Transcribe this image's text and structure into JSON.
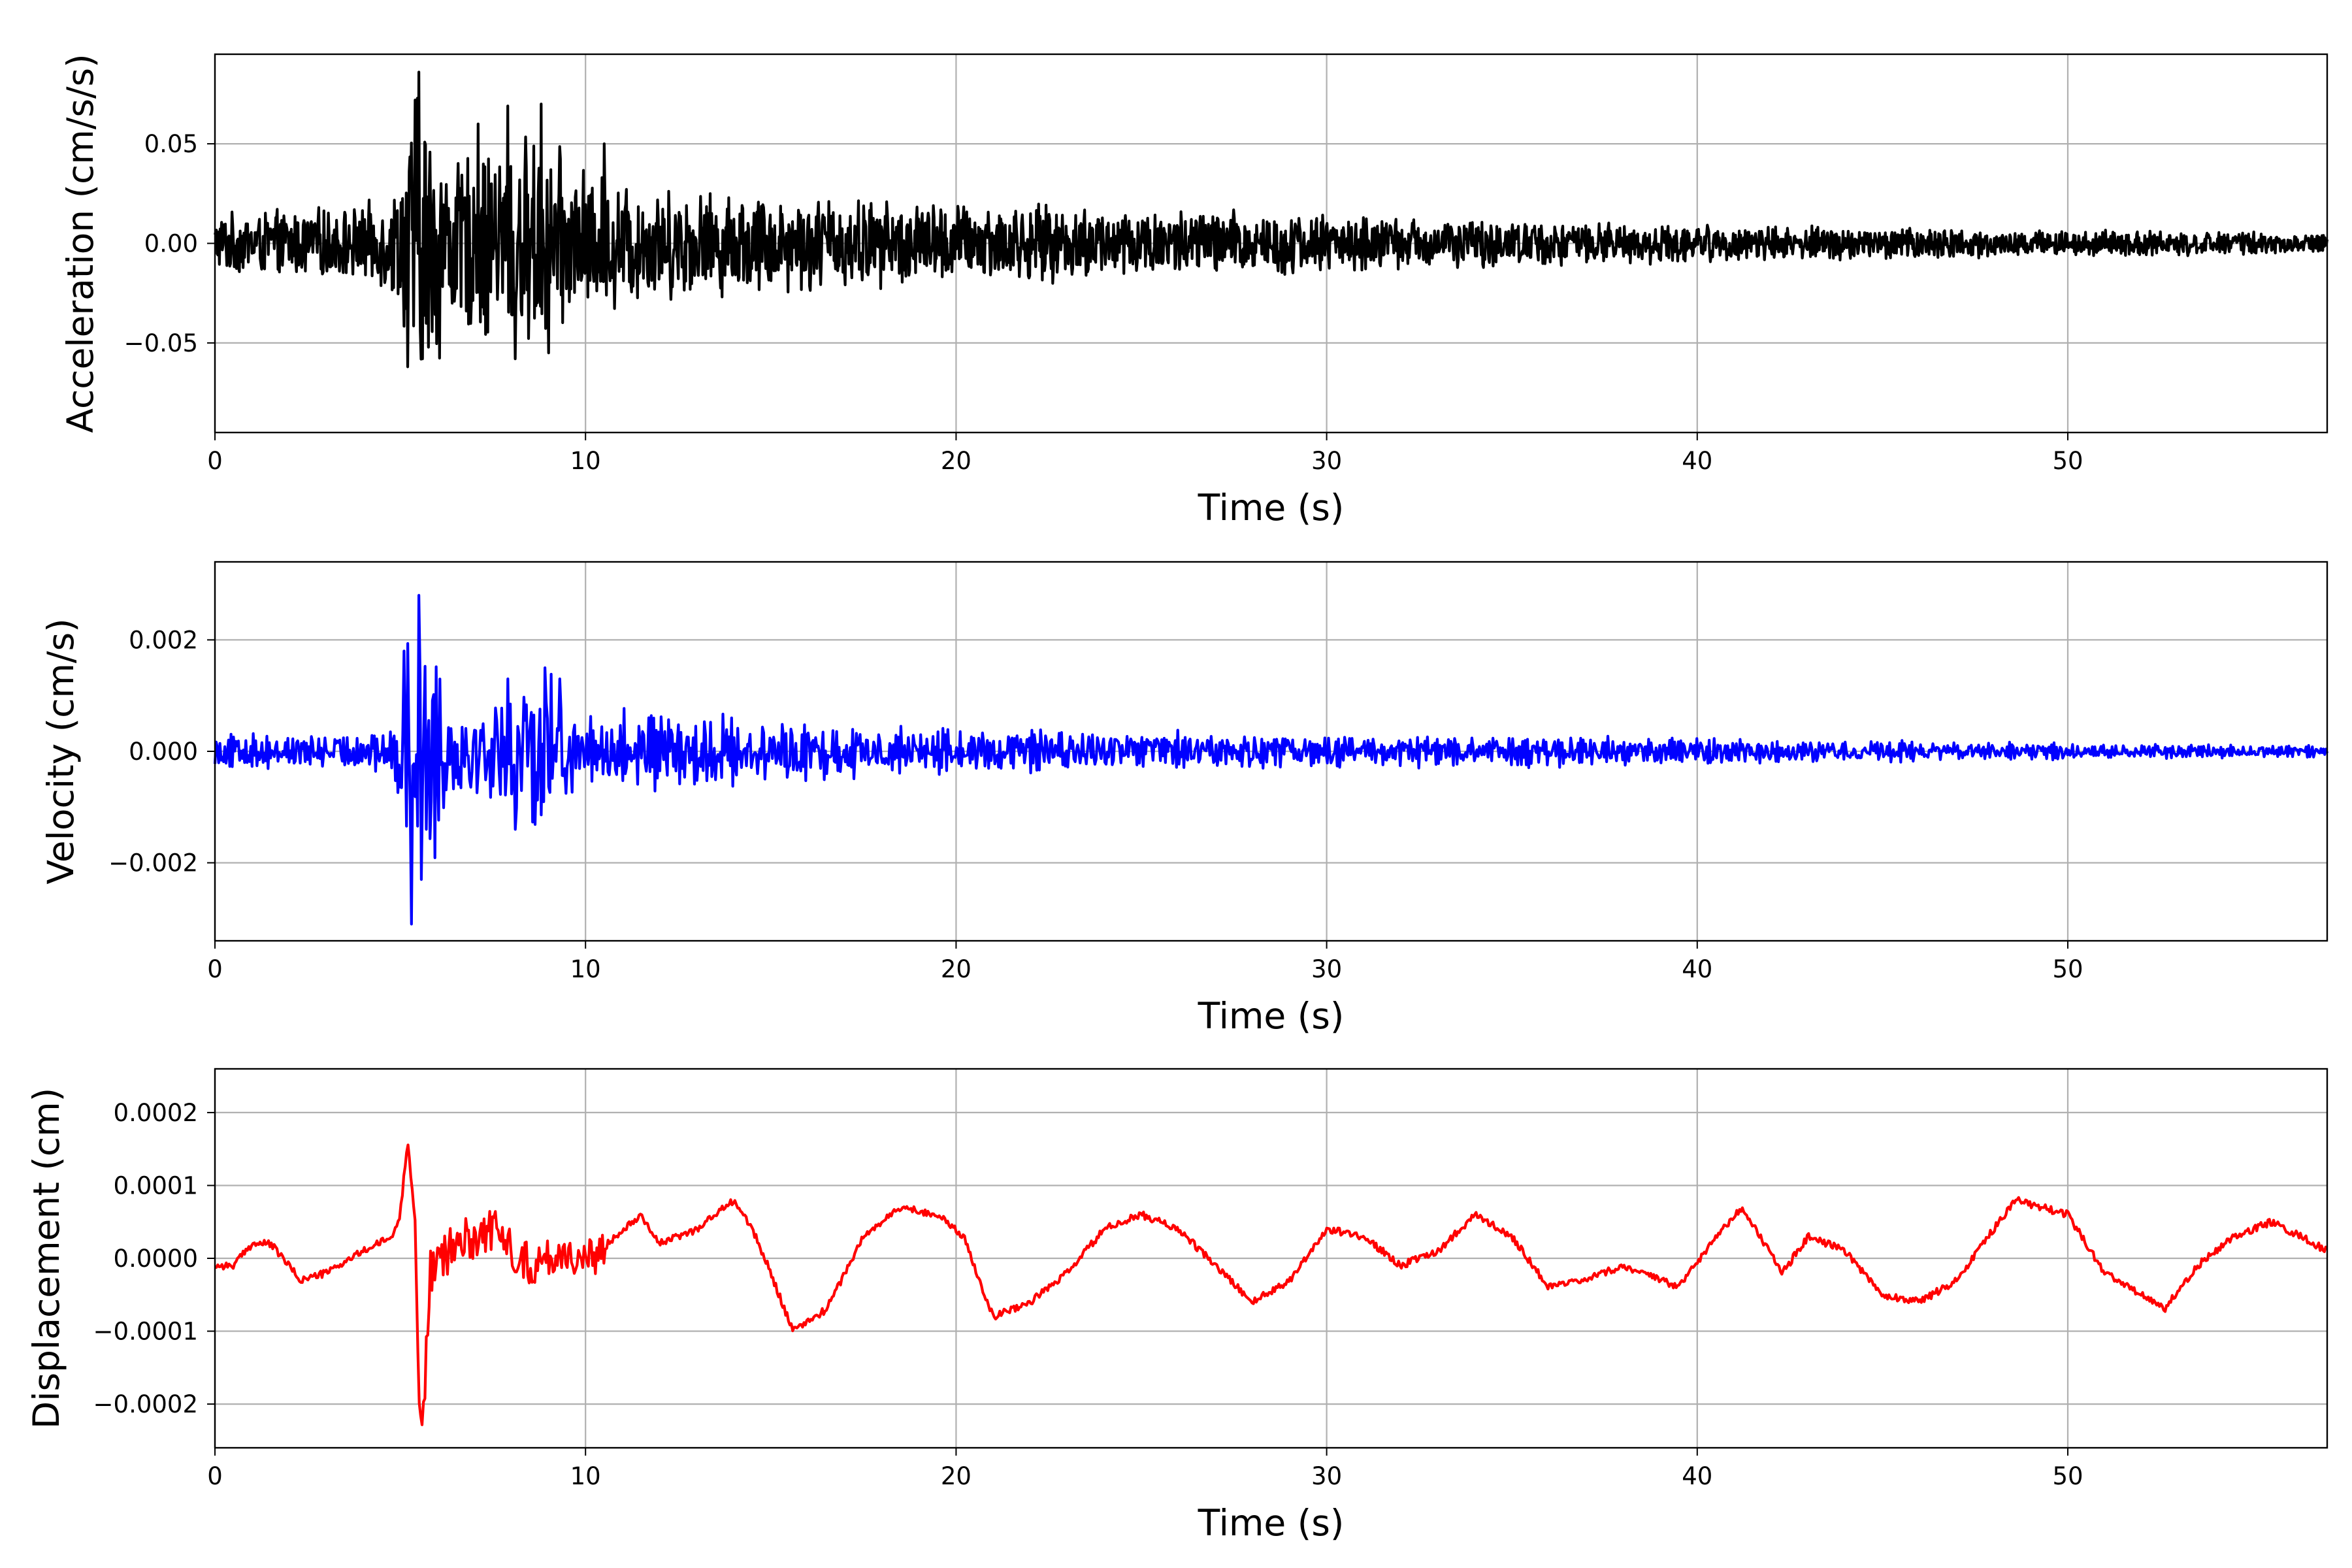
{
  "chart_data": [
    {
      "type": "line",
      "xlabel": "Time (s)",
      "ylabel": "Acceleration (cm/s/s)",
      "xlim": [
        0,
        57
      ],
      "ylim": [
        -0.095,
        0.095
      ],
      "xticks": [
        0,
        10,
        20,
        30,
        40,
        50
      ],
      "xtick_labels": [
        "0",
        "10",
        "20",
        "30",
        "40",
        "50"
      ],
      "yticks": [
        -0.05,
        0.0,
        0.05
      ],
      "ytick_labels": [
        "−0.05",
        "0.00",
        "0.05"
      ],
      "grid": true,
      "line_color": "#000000",
      "envelope": {
        "t": [
          0,
          2,
          4,
          4.9,
          5.2,
          5.5,
          6.5,
          8,
          9,
          10,
          12,
          14,
          17,
          20,
          24,
          28,
          32,
          36,
          40,
          45,
          50,
          55,
          57
        ],
        "amplitude": [
          0.016,
          0.018,
          0.02,
          0.03,
          0.06,
          0.085,
          0.045,
          0.06,
          0.055,
          0.04,
          0.03,
          0.028,
          0.025,
          0.022,
          0.02,
          0.018,
          0.014,
          0.012,
          0.01,
          0.009,
          0.007,
          0.006,
          0.005
        ]
      },
      "peak_samples": [
        {
          "t": 5.2,
          "y": -0.062
        },
        {
          "t": 5.4,
          "y": 0.072
        },
        {
          "t": 5.5,
          "y": 0.086
        },
        {
          "t": 5.6,
          "y": -0.058
        },
        {
          "t": 7.1,
          "y": 0.06
        },
        {
          "t": 7.9,
          "y": 0.069
        },
        {
          "t": 8.1,
          "y": -0.058
        },
        {
          "t": 8.8,
          "y": 0.07
        },
        {
          "t": 9.0,
          "y": -0.055
        },
        {
          "t": 10.5,
          "y": 0.05
        }
      ],
      "n_samples": 2850
    },
    {
      "type": "line",
      "xlabel": "Time (s)",
      "ylabel": "Velocity (cm/s)",
      "xlim": [
        0,
        57
      ],
      "ylim": [
        -0.0034,
        0.0034
      ],
      "xticks": [
        0,
        10,
        20,
        30,
        40,
        50
      ],
      "xtick_labels": [
        "0",
        "10",
        "20",
        "30",
        "40",
        "50"
      ],
      "yticks": [
        -0.002,
        0.0,
        0.002
      ],
      "ytick_labels": [
        "−0.002",
        "0.000",
        "0.002"
      ],
      "grid": true,
      "line_color": "#0000ff",
      "envelope": {
        "t": [
          0,
          3,
          4.8,
          5.1,
          5.5,
          6.5,
          8,
          9,
          10,
          12,
          14,
          17,
          20,
          25,
          30,
          35,
          40,
          45,
          50,
          55,
          57
        ],
        "amplitude": [
          0.0003,
          0.00035,
          0.0004,
          0.0018,
          0.0028,
          0.001,
          0.0013,
          0.0015,
          0.0009,
          0.0007,
          0.0007,
          0.0005,
          0.0004,
          0.0004,
          0.0003,
          0.0003,
          0.00025,
          0.0002,
          0.00015,
          0.00012,
          0.0001
        ]
      },
      "peak_samples": [
        {
          "t": 5.1,
          "y": 0.0018
        },
        {
          "t": 5.3,
          "y": -0.0031
        },
        {
          "t": 5.5,
          "y": 0.0028
        },
        {
          "t": 5.7,
          "y": -0.0014
        },
        {
          "t": 7.9,
          "y": 0.0013
        },
        {
          "t": 8.1,
          "y": -0.0014
        },
        {
          "t": 8.9,
          "y": 0.0015
        },
        {
          "t": 9.3,
          "y": 0.0013
        }
      ],
      "n_samples": 1710
    },
    {
      "type": "line",
      "xlabel": "Time (s)",
      "ylabel": "Displacement (cm)",
      "xlim": [
        0,
        57
      ],
      "ylim": [
        -0.00026,
        0.00026
      ],
      "xticks": [
        0,
        10,
        20,
        30,
        40,
        50
      ],
      "xtick_labels": [
        "0",
        "10",
        "20",
        "30",
        "40",
        "50"
      ],
      "yticks": [
        -0.0002,
        -0.0001,
        0.0,
        0.0001,
        0.0002
      ],
      "ytick_labels": [
        "−0.0002",
        "−0.0001",
        "0.0000",
        "0.0001",
        "0.0002"
      ],
      "grid": true,
      "line_color": "#ff0000",
      "x": [
        0,
        0.5,
        1,
        1.5,
        2,
        2.3,
        3,
        4,
        4.8,
        5.0,
        5.2,
        5.4,
        5.5,
        5.6,
        5.8,
        6.5,
        7.5,
        8.5,
        9.5,
        10,
        11,
        11.5,
        12,
        13,
        14,
        14.5,
        15,
        15.6,
        16.5,
        17.5,
        18.5,
        19.5,
        20.2,
        21,
        22,
        23,
        24,
        25,
        26,
        27,
        28,
        29,
        30,
        31,
        32,
        33,
        34,
        35,
        36,
        37,
        38,
        39,
        39.5,
        40.5,
        41.2,
        42.3,
        43,
        44,
        45,
        46,
        47,
        48,
        48.6,
        50,
        51,
        52,
        52.6,
        53.5,
        54.5,
        55.5,
        56.3,
        57
      ],
      "y": [
        -1e-05,
        -1e-05,
        2e-05,
        2e-05,
        -1e-05,
        -3e-05,
        -2e-05,
        1e-05,
        3e-05,
        6e-05,
        0.000165,
        5e-05,
        -0.00019,
        -0.000235,
        -2e-05,
        2e-05,
        4e-05,
        -1e-05,
        1e-05,
        -1e-05,
        4e-05,
        6e-05,
        2e-05,
        4e-05,
        8e-05,
        4e-05,
        -2e-05,
        -0.0001,
        -7e-05,
        3e-05,
        7e-05,
        6e-05,
        3e-05,
        -8e-05,
        -6e-05,
        -2e-05,
        4e-05,
        6e-05,
        4e-05,
        -1e-05,
        -6e-05,
        -3e-05,
        4e-05,
        3e-05,
        -1e-05,
        1e-05,
        6e-05,
        3e-05,
        -4e-05,
        -3e-05,
        -1e-05,
        -3e-05,
        -4e-05,
        3e-05,
        7e-05,
        -2e-05,
        3e-05,
        1e-05,
        -5e-05,
        -6e-05,
        -3e-05,
        4e-05,
        8e-05,
        6e-05,
        -2e-05,
        -5e-05,
        -7e-05,
        -1e-05,
        3e-05,
        5e-05,
        3e-05,
        1e-05
      ]
    }
  ]
}
